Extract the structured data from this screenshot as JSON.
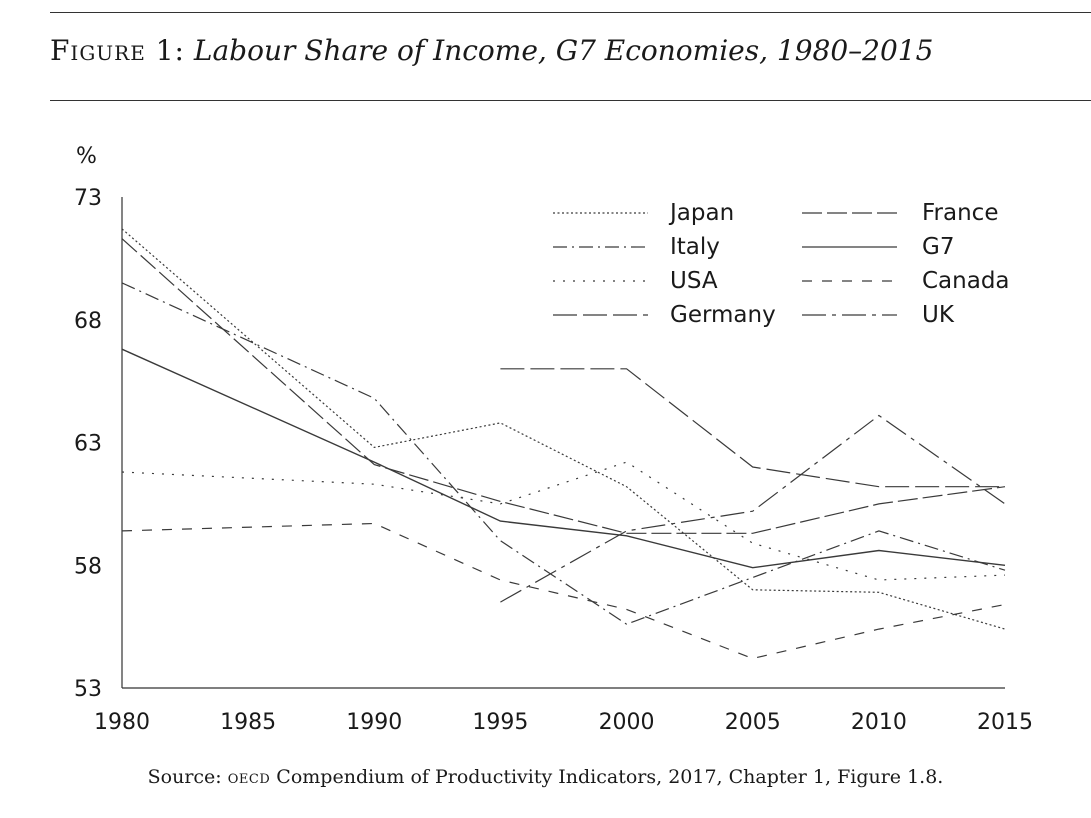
{
  "figure": {
    "label": "Figure 1:",
    "title": "Labour Share of Income, G7 Economies, 1980–2015",
    "source_prefix": "Source: ",
    "source_abbr": "OECD",
    "source_rest": " Compendium of Productivity Indicators, 2017, Chapter 1, Figure 1.8."
  },
  "chart_data": {
    "type": "line",
    "title": "Labour Share of Income, G7 Economies, 1980–2015",
    "ylabel": "%",
    "xlabel": "",
    "xlim": [
      1980,
      2015
    ],
    "ylim": [
      53,
      73
    ],
    "xticks": [
      1980,
      1985,
      1990,
      1995,
      2000,
      2005,
      2010,
      2015
    ],
    "yticks": [
      53,
      58,
      63,
      68,
      73
    ],
    "grid": false,
    "legend": "top-right",
    "series": [
      {
        "name": "Japan",
        "style": "dotted-fine",
        "x": [
          1980,
          1990,
          1995,
          2000,
          2005,
          2010,
          2015
        ],
        "y": [
          71.7,
          62.8,
          63.8,
          61.2,
          57.0,
          56.9,
          55.4
        ]
      },
      {
        "name": "Italy",
        "style": "dash-dot",
        "x": [
          1980,
          1990,
          1995,
          2000,
          2005,
          2010,
          2015
        ],
        "y": [
          69.5,
          64.8,
          59.0,
          55.6,
          57.5,
          59.4,
          57.8
        ]
      },
      {
        "name": "USA",
        "style": "dotted-sparse",
        "x": [
          1980,
          1990,
          1995,
          2000,
          2005,
          2010,
          2015
        ],
        "y": [
          61.8,
          61.3,
          60.5,
          62.2,
          58.9,
          57.4,
          57.6
        ]
      },
      {
        "name": "Germany",
        "style": "long-dash",
        "x": [
          1995,
          2000,
          2005,
          2010,
          2015
        ],
        "y": [
          66.0,
          66.0,
          62.0,
          61.2,
          61.2
        ]
      },
      {
        "name": "France",
        "style": "long-dash-2",
        "x": [
          1980,
          1990,
          1995,
          2000,
          2005,
          2010,
          2015
        ],
        "y": [
          71.3,
          62.1,
          60.6,
          59.3,
          59.3,
          60.5,
          61.2
        ]
      },
      {
        "name": "G7",
        "style": "solid",
        "x": [
          1980,
          1990,
          1995,
          2000,
          2005,
          2010,
          2015
        ],
        "y": [
          66.8,
          62.2,
          59.8,
          59.2,
          57.9,
          58.6,
          58.0
        ]
      },
      {
        "name": "Canada",
        "style": "dashed",
        "x": [
          1980,
          1990,
          1995,
          2000,
          2005,
          2010,
          2015
        ],
        "y": [
          59.4,
          59.7,
          57.4,
          56.2,
          54.2,
          55.4,
          56.4
        ]
      },
      {
        "name": "UK",
        "style": "dash-dot-long",
        "x": [
          1995,
          2000,
          2005,
          2010,
          2015
        ],
        "y": [
          56.5,
          59.4,
          60.2,
          64.1,
          60.5
        ]
      }
    ],
    "legend_layout": [
      [
        "Japan",
        "France"
      ],
      [
        "Italy",
        "G7"
      ],
      [
        "USA",
        "Canada"
      ],
      [
        "Germany",
        "UK"
      ]
    ]
  }
}
